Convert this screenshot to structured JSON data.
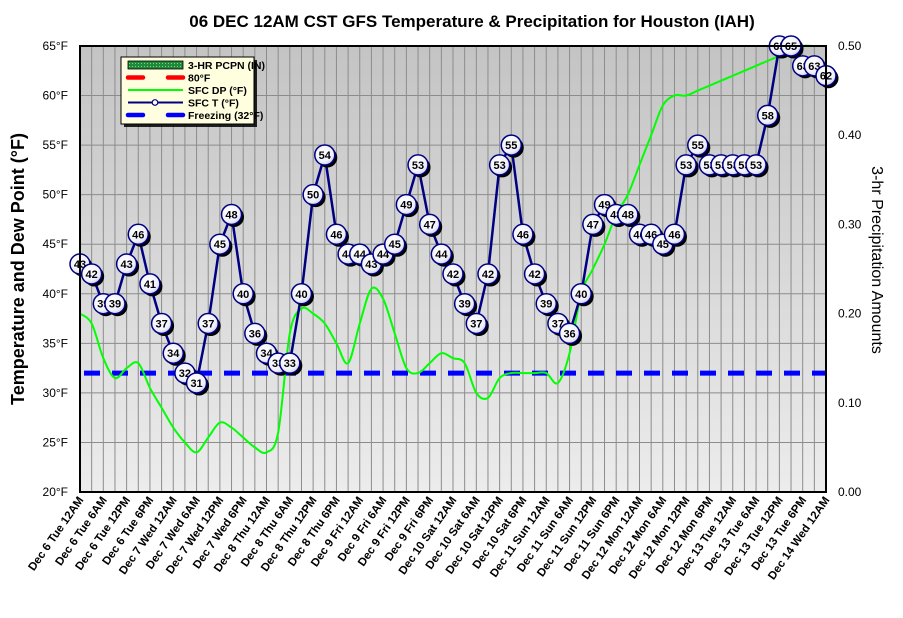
{
  "chart_data": {
    "type": "line",
    "title": "06 DEC 12AM CST GFS Temperature & Precipitation for Houston (IAH)",
    "ylabel": "Temperature and Dew Point (°F)",
    "y2label": "3-hr Precipitation Amounts",
    "ylim": [
      20,
      65
    ],
    "y2lim": [
      0,
      0.5
    ],
    "yticks": [
      "20°F",
      "25°F",
      "30°F",
      "35°F",
      "40°F",
      "45°F",
      "50°F",
      "55°F",
      "60°F",
      "65°F"
    ],
    "y2ticks": [
      "0.00",
      "0.10",
      "0.20",
      "0.30",
      "0.40",
      "0.50"
    ],
    "grid": true,
    "legend_position": "top-left",
    "legend": [
      {
        "name": "3-HR PCPN  (IN)",
        "style": "bar",
        "color": "#1f8a3a"
      },
      {
        "name": "80°F",
        "style": "dashed",
        "color": "#ff0000"
      },
      {
        "name": "SFC DP (°F)",
        "style": "line",
        "color": "#00ff00"
      },
      {
        "name": "SFC T (°F)",
        "style": "line-marker",
        "color": "#000080"
      },
      {
        "name": "Freezing (32°F)",
        "style": "dashed",
        "color": "#0000ff"
      }
    ],
    "xlabels": [
      "Dec 6 Tue 12AM",
      "Dec 6 Tue 6AM",
      "Dec 6 Tue 12PM",
      "Dec 6 Tue 6PM",
      "Dec 7 Wed 12AM",
      "Dec 7 Wed 6AM",
      "Dec 7 Wed 12PM",
      "Dec 7 Wed 6PM",
      "Dec 8 Thu 12AM",
      "Dec 8 Thu 6AM",
      "Dec 8 Thu 12PM",
      "Dec 8 Thu 6PM",
      "Dec 9 Fri 12AM",
      "Dec 9 Fri 6AM",
      "Dec 9 Fri 12PM",
      "Dec 9 Fri 6PM",
      "Dec 10 Sat 12AM",
      "Dec 10 Sat 6AM",
      "Dec 10 Sat 12PM",
      "Dec 10 Sat 6PM",
      "Dec 11 Sun 12AM",
      "Dec 11 Sun 6AM",
      "Dec 11 Sun 12PM",
      "Dec 11 Sun 6PM",
      "Dec 12 Mon 12AM",
      "Dec 12 Mon 6AM",
      "Dec 12 Mon 12PM",
      "Dec 12 Mon 6PM",
      "Dec 13 Tue 12AM",
      "Dec 13 Tue 6AM",
      "Dec 13 Tue 12PM",
      "Dec 13 Tue 6PM",
      "Dec 14 Wed 12AM"
    ],
    "series": [
      {
        "name": "SFC T (°F)",
        "interval_hours": 3,
        "values": [
          43,
          42,
          39,
          39,
          43,
          46,
          41,
          37,
          34,
          32,
          31,
          37,
          45,
          48,
          40,
          36,
          34,
          33,
          33,
          40,
          50,
          54,
          46,
          44,
          44,
          43,
          44,
          45,
          49,
          53,
          47,
          44,
          42,
          39,
          37,
          42,
          53,
          55,
          46,
          42,
          39,
          37,
          36,
          40,
          47,
          49,
          48,
          48,
          46,
          46,
          45,
          46,
          53,
          55,
          53,
          53,
          53,
          53,
          53,
          58,
          65,
          65,
          63,
          63,
          62
        ]
      },
      {
        "name": "SFC DP (°F)",
        "interval_hours": 3,
        "values": [
          38,
          37,
          33.5,
          31.5,
          32.5,
          33,
          30.5,
          28.5,
          26.5,
          25,
          24,
          25.5,
          27,
          26.5,
          25.5,
          24.5,
          24,
          26,
          36,
          38.5,
          38,
          37,
          35,
          33,
          37,
          40.5,
          39.5,
          36,
          32.5,
          32,
          33,
          34,
          33.5,
          33,
          30,
          29.5,
          31.5,
          32,
          32,
          32,
          32,
          31,
          34,
          40,
          42.5,
          45,
          48,
          50,
          53,
          56,
          59,
          60,
          60,
          60.5,
          61,
          61.5,
          62,
          62.5,
          63,
          63.5,
          64,
          64.5,
          65,
          65,
          65
        ]
      },
      {
        "name": "Freezing (32°F)",
        "values": [
          32
        ]
      },
      {
        "name": "80°F",
        "values": [
          80
        ]
      },
      {
        "name": "3-HR PCPN  (IN)",
        "values": []
      }
    ]
  }
}
